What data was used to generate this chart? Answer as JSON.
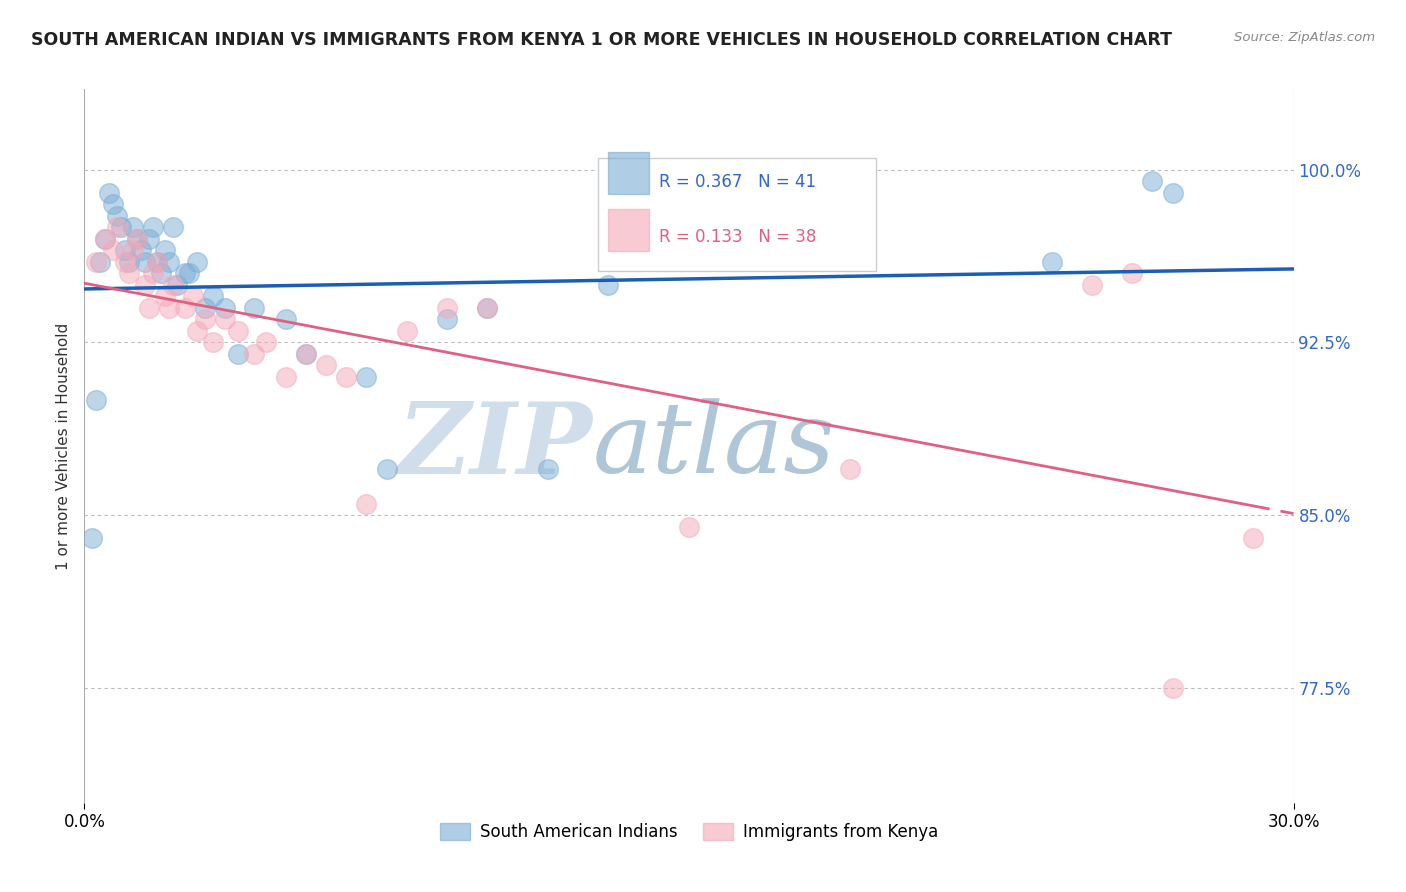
{
  "title": "SOUTH AMERICAN INDIAN VS IMMIGRANTS FROM KENYA 1 OR MORE VEHICLES IN HOUSEHOLD CORRELATION CHART",
  "source": "Source: ZipAtlas.com",
  "ylabel_label": "1 or more Vehicles in Household",
  "ytick_labels": [
    "77.5%",
    "85.0%",
    "92.5%",
    "100.0%"
  ],
  "ytick_values": [
    0.775,
    0.85,
    0.925,
    1.0
  ],
  "xlim": [
    0.0,
    0.3
  ],
  "ylim": [
    0.725,
    1.035
  ],
  "legend_r1": "R = 0.367",
  "legend_n1": "N = 41",
  "legend_r2": "R = 0.133",
  "legend_n2": "N = 38",
  "color_blue": "#7aadd4",
  "color_pink": "#f4a8b8",
  "line_color_blue": "#1a5fb4",
  "line_color_pink": "#e06080",
  "background_color": "#FFFFFF",
  "watermark_zip": "ZIP",
  "watermark_atlas": "atlas",
  "watermark_color_zip": "#c8d8e8",
  "watermark_color_atlas": "#a0bcd0",
  "blue_scatter_x": [
    0.002,
    0.003,
    0.004,
    0.005,
    0.006,
    0.007,
    0.008,
    0.009,
    0.01,
    0.011,
    0.012,
    0.013,
    0.014,
    0.015,
    0.016,
    0.017,
    0.018,
    0.019,
    0.02,
    0.021,
    0.022,
    0.023,
    0.025,
    0.026,
    0.028,
    0.03,
    0.032,
    0.035,
    0.038,
    0.042,
    0.05,
    0.055,
    0.07,
    0.075,
    0.09,
    0.1,
    0.115,
    0.13,
    0.24,
    0.265,
    0.27
  ],
  "blue_scatter_y": [
    0.84,
    0.9,
    0.96,
    0.97,
    0.99,
    0.985,
    0.98,
    0.975,
    0.965,
    0.96,
    0.975,
    0.97,
    0.965,
    0.96,
    0.97,
    0.975,
    0.96,
    0.955,
    0.965,
    0.96,
    0.975,
    0.95,
    0.955,
    0.955,
    0.96,
    0.94,
    0.945,
    0.94,
    0.92,
    0.94,
    0.935,
    0.92,
    0.91,
    0.87,
    0.935,
    0.94,
    0.87,
    0.95,
    0.96,
    0.995,
    0.99
  ],
  "pink_scatter_x": [
    0.003,
    0.005,
    0.007,
    0.008,
    0.01,
    0.011,
    0.012,
    0.013,
    0.015,
    0.016,
    0.017,
    0.018,
    0.02,
    0.021,
    0.022,
    0.025,
    0.027,
    0.028,
    0.03,
    0.032,
    0.035,
    0.038,
    0.042,
    0.045,
    0.05,
    0.055,
    0.06,
    0.065,
    0.07,
    0.08,
    0.09,
    0.1,
    0.15,
    0.19,
    0.25,
    0.26,
    0.27,
    0.29
  ],
  "pink_scatter_y": [
    0.96,
    0.97,
    0.965,
    0.975,
    0.96,
    0.955,
    0.965,
    0.97,
    0.95,
    0.94,
    0.955,
    0.96,
    0.945,
    0.94,
    0.95,
    0.94,
    0.945,
    0.93,
    0.935,
    0.925,
    0.935,
    0.93,
    0.92,
    0.925,
    0.91,
    0.92,
    0.915,
    0.91,
    0.855,
    0.93,
    0.94,
    0.94,
    0.845,
    0.87,
    0.95,
    0.955,
    0.775,
    0.84
  ]
}
